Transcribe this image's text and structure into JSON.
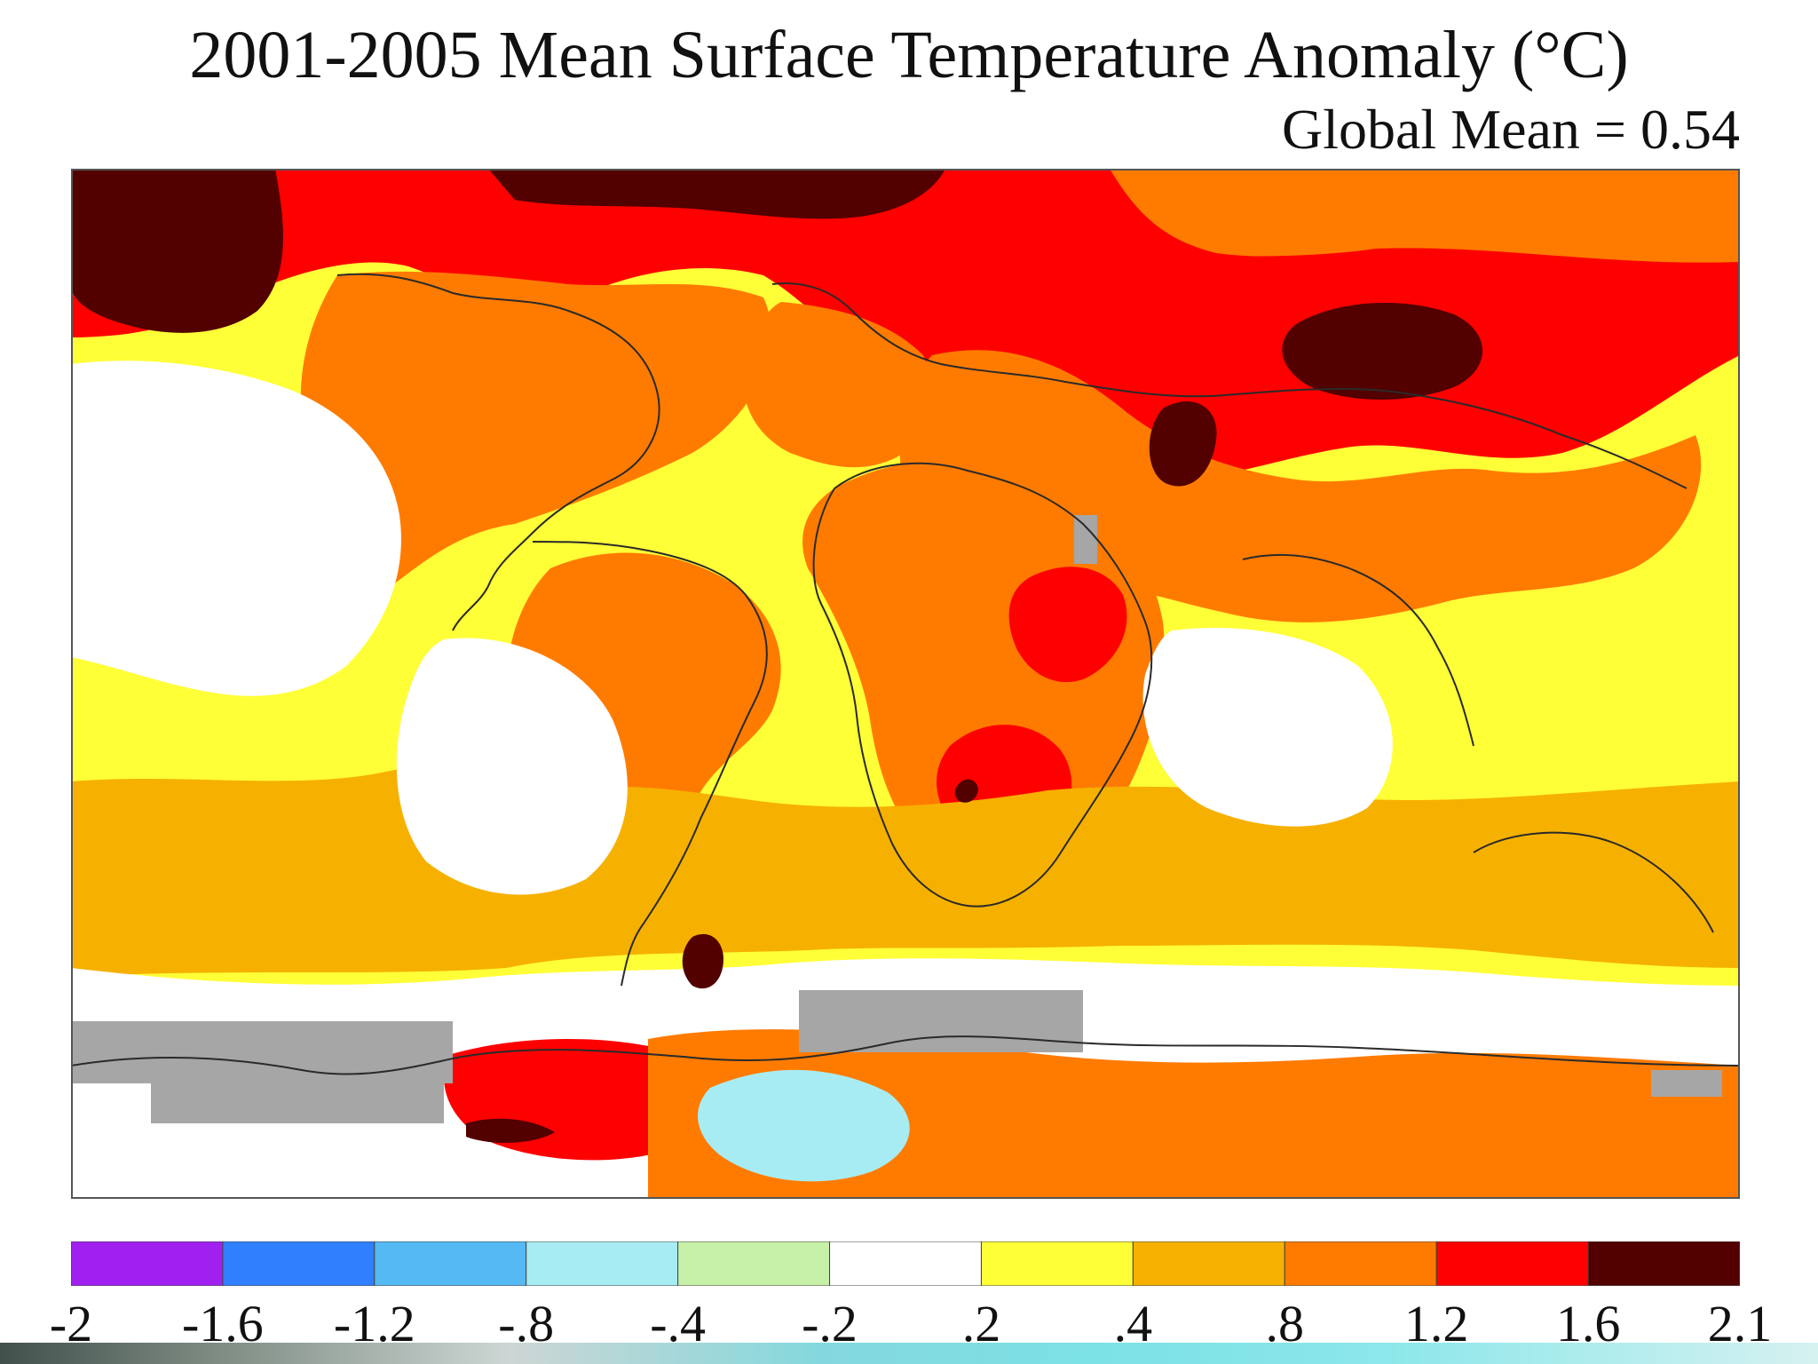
{
  "title": "2001-2005 Mean Surface Temperature Anomaly (°C)",
  "subtitle": "Global Mean = 0.54",
  "legend": {
    "ticks": [
      "-2",
      "-1.6",
      "-1.2",
      "-.8",
      "-.4",
      "-.2",
      ".2",
      ".4",
      ".8",
      "1.2",
      "1.6",
      "2.1"
    ],
    "colors": [
      "#a020f0",
      "#2f7fff",
      "#55b9f4",
      "#a8ecf3",
      "#c7f0a8",
      "#ffffff",
      "#ffff38",
      "#f6b100",
      "#ff7b00",
      "#ff0000",
      "#520000"
    ]
  },
  "colors": {
    "gray": "#a6a6a6",
    "white": "#ffffff",
    "yellow": "#ffff38",
    "orange_light": "#f6b100",
    "orange": "#ff7b00",
    "red": "#ff0000",
    "dark_red": "#520000",
    "light_blue": "#a8ecf3",
    "light_green": "#c7f0a8",
    "coast": "#2a2a2a"
  }
}
